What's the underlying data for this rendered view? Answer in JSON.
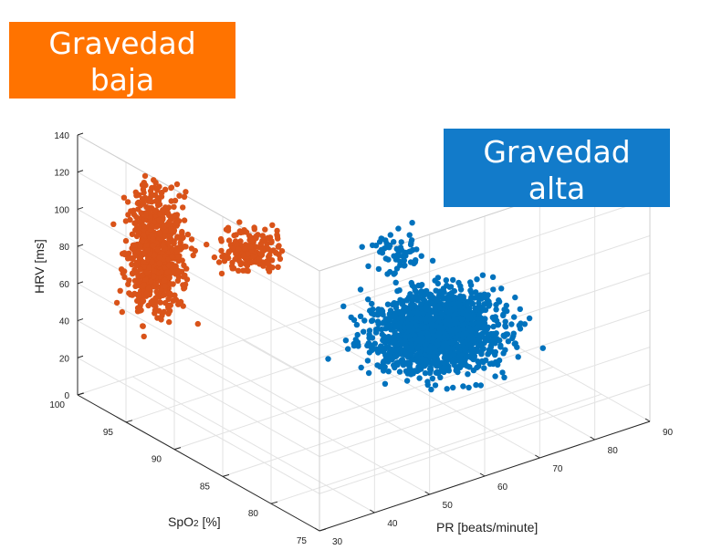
{
  "annotations": {
    "low_gravity": {
      "line1": "Gravedad",
      "line2": "baja",
      "color": "#FF7300"
    },
    "high_gravity": {
      "line1": "Gravedad",
      "line2": "alta",
      "color": "#127BCA"
    }
  },
  "chart_data": {
    "type": "scatter",
    "projection": "3d",
    "grid": true,
    "title": "",
    "axes": {
      "x": {
        "label": "PR [beats/minute]",
        "ticks": [
          "30",
          "40",
          "50",
          "60",
          "70",
          "80",
          "90"
        ],
        "range": [
          30,
          90
        ]
      },
      "y": {
        "label_main": "SpO",
        "label_sub": "2",
        "label_unit": " [%]",
        "ticks": [
          "100",
          "95",
          "90",
          "85",
          "80",
          "75"
        ],
        "range": [
          75,
          100
        ]
      },
      "z": {
        "label": "HRV [ms]",
        "ticks": [
          "0",
          "20",
          "40",
          "60",
          "80",
          "100",
          "120",
          "140"
        ],
        "range": [
          0,
          140
        ]
      }
    },
    "series": [
      {
        "name": "",
        "color": "#D95319",
        "clusters": [
          {
            "pr": [
              32,
              48
            ],
            "spo2": [
              95,
              100
            ],
            "hrv": [
              20,
              130
            ],
            "count": 700
          },
          {
            "pr": [
              42,
              58
            ],
            "spo2": [
              90,
              97
            ],
            "hrv": [
              60,
              95
            ],
            "count": 180
          }
        ]
      },
      {
        "name": "",
        "color": "#0072BD",
        "clusters": [
          {
            "pr": [
              52,
              86
            ],
            "spo2": [
              78,
              92
            ],
            "hrv": [
              10,
              70
            ],
            "count": 1500
          },
          {
            "pr": [
              58,
              72
            ],
            "spo2": [
              84,
              90
            ],
            "hrv": [
              60,
              100
            ],
            "count": 60
          }
        ]
      }
    ]
  }
}
